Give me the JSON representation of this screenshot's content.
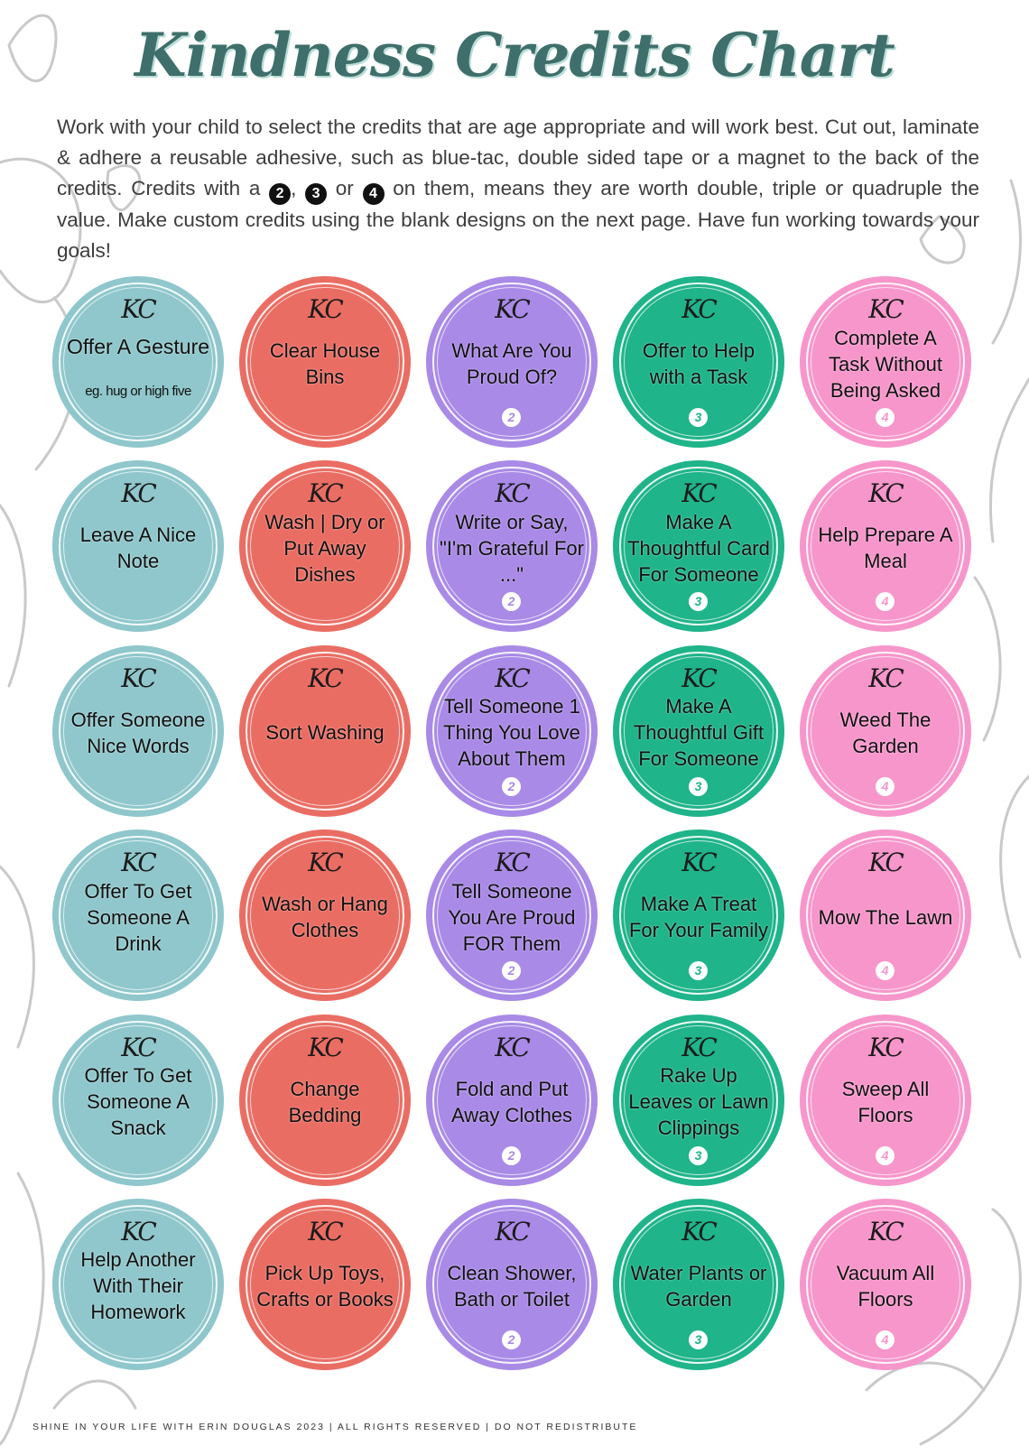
{
  "title": "Kindness Credits Chart",
  "intro": {
    "part1": "Work with your child to select the credits that are age appropriate and will work best. Cut out, laminate & adhere a reusable adhesive, such as blue-tac, double sided tape or a magnet to the back of the credits. Credits with a",
    "n2": "2",
    "sep1": ",",
    "n3": "3",
    "sep2": "or",
    "n4": "4",
    "part2": "on them, means they are worth double, triple or quadruple the value. Make custom credits using the blank designs on the next page. Have fun working towards your goals!"
  },
  "logo_text": "KC",
  "colors": {
    "teal": "#8fc7cc",
    "coral": "#ea6d63",
    "purple": "#a98ae6",
    "green": "#1fb48a",
    "pink": "#f796cb",
    "title": "#3f6f6a"
  },
  "credits": [
    {
      "label": "Offer A Gesture",
      "sub": "eg. hug or high five",
      "badge": ""
    },
    {
      "label": "Clear House Bins",
      "sub": "",
      "badge": ""
    },
    {
      "label": "What Are You Proud Of?",
      "sub": "",
      "badge": "2"
    },
    {
      "label": "Offer to Help with a Task",
      "sub": "",
      "badge": "3"
    },
    {
      "label": "Complete A Task Without Being Asked",
      "sub": "",
      "badge": "4"
    },
    {
      "label": "Leave A Nice Note",
      "sub": "",
      "badge": ""
    },
    {
      "label": "Wash | Dry or Put Away Dishes",
      "sub": "",
      "badge": ""
    },
    {
      "label": "Write or Say, \"I'm Grateful For ...\"",
      "sub": "",
      "badge": "2"
    },
    {
      "label": "Make A Thoughtful Card For Someone",
      "sub": "",
      "badge": "3"
    },
    {
      "label": "Help Prepare A Meal",
      "sub": "",
      "badge": "4"
    },
    {
      "label": "Offer Someone Nice Words",
      "sub": "",
      "badge": ""
    },
    {
      "label": "Sort Washing",
      "sub": "",
      "badge": ""
    },
    {
      "label": "Tell Someone 1 Thing You Love About Them",
      "sub": "",
      "badge": "2"
    },
    {
      "label": "Make A Thoughtful Gift For Someone",
      "sub": "",
      "badge": "3"
    },
    {
      "label": "Weed The Garden",
      "sub": "",
      "badge": "4"
    },
    {
      "label": "Offer To Get Someone A Drink",
      "sub": "",
      "badge": ""
    },
    {
      "label": "Wash or Hang Clothes",
      "sub": "",
      "badge": ""
    },
    {
      "label": "Tell Someone You Are Proud FOR Them",
      "sub": "",
      "badge": "2"
    },
    {
      "label": "Make A Treat For Your Family",
      "sub": "",
      "badge": "3"
    },
    {
      "label": "Mow The Lawn",
      "sub": "",
      "badge": "4"
    },
    {
      "label": "Offer To Get Someone A Snack",
      "sub": "",
      "badge": ""
    },
    {
      "label": "Change Bedding",
      "sub": "",
      "badge": ""
    },
    {
      "label": "Fold and Put Away Clothes",
      "sub": "",
      "badge": "2"
    },
    {
      "label": "Rake Up Leaves or Lawn Clippings",
      "sub": "",
      "badge": "3"
    },
    {
      "label": "Sweep All Floors",
      "sub": "",
      "badge": "4"
    },
    {
      "label": "Help Another With Their Homework",
      "sub": "",
      "badge": ""
    },
    {
      "label": "Pick Up Toys, Crafts or Books",
      "sub": "",
      "badge": ""
    },
    {
      "label": "Clean Shower, Bath or Toilet",
      "sub": "",
      "badge": "2"
    },
    {
      "label": "Water Plants or Garden",
      "sub": "",
      "badge": "3"
    },
    {
      "label": "Vacuum All Floors",
      "sub": "",
      "badge": "4"
    }
  ],
  "footer": "SHINE IN YOUR LIFE WITH ERIN DOUGLAS 2023 | ALL RIGHTS RESERVED | DO NOT REDISTRIBUTE"
}
